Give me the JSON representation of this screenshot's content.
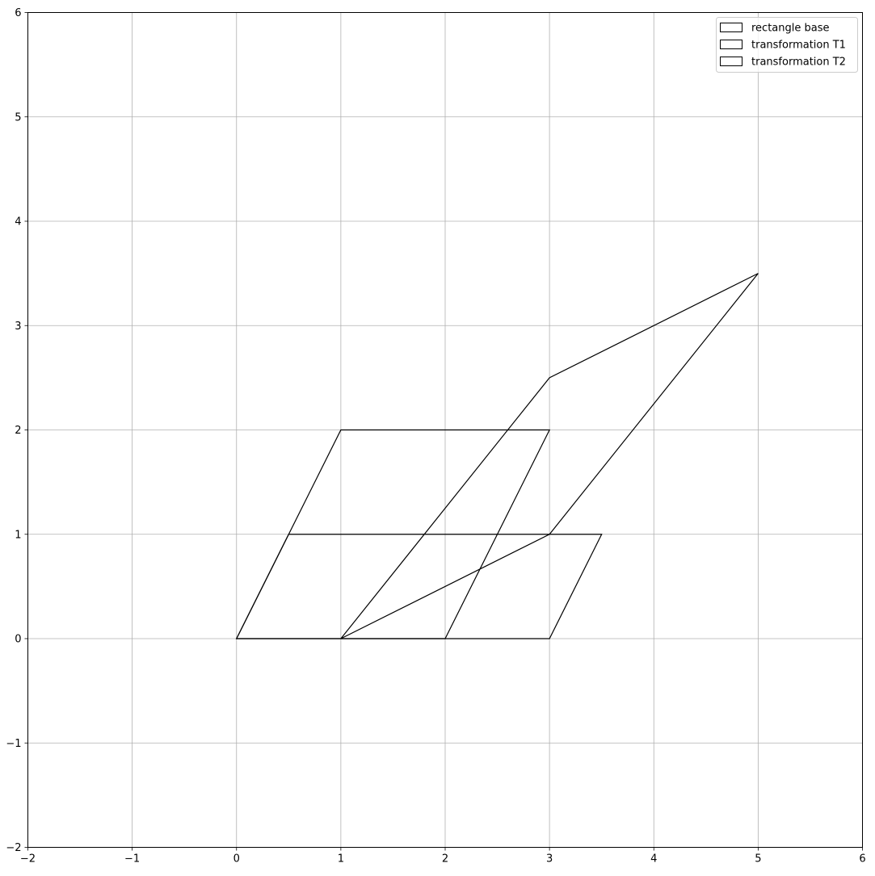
{
  "chart_data": {
    "type": "polygon",
    "title": "",
    "xlabel": "",
    "ylabel": "",
    "xlim": [
      -2,
      6
    ],
    "ylim": [
      -2,
      6
    ],
    "xticks": [
      -2,
      -1,
      0,
      1,
      2,
      3,
      4,
      5,
      6
    ],
    "yticks": [
      -2,
      -1,
      0,
      1,
      2,
      3,
      4,
      5,
      6
    ],
    "tick_labels_x": [
      "−2",
      "−1",
      "0",
      "1",
      "2",
      "3",
      "4",
      "5",
      "6"
    ],
    "tick_labels_y": [
      "−2",
      "−1",
      "0",
      "1",
      "2",
      "3",
      "4",
      "5",
      "6"
    ],
    "grid": true,
    "legend_position": "top-right",
    "series": [
      {
        "name": "rectangle base",
        "edge_color": "#000000",
        "fill_color": "none",
        "points": [
          [
            0,
            0
          ],
          [
            3,
            0
          ],
          [
            3.5,
            1
          ],
          [
            0.5,
            1
          ]
        ]
      },
      {
        "name": "transformation T1",
        "edge_color": "#000000",
        "fill_color": "none",
        "points": [
          [
            0,
            0
          ],
          [
            2,
            0
          ],
          [
            3,
            2
          ],
          [
            1,
            2
          ]
        ]
      },
      {
        "name": "transformation T2",
        "edge_color": "#000000",
        "fill_color": "none",
        "points": [
          [
            1,
            0
          ],
          [
            3,
            1
          ],
          [
            5,
            3.5
          ],
          [
            3,
            2.5
          ]
        ]
      }
    ]
  }
}
